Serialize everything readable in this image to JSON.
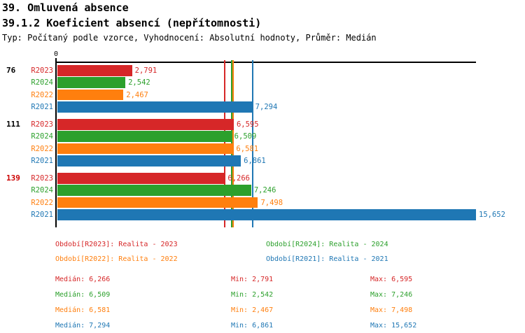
{
  "header": {
    "title": "39. Omluvená absence",
    "subtitle": "39.1.2 Koeficient absencí (nepřítomnosti)",
    "meta": "Typ: Počítaný podle vzorce, Vyhodnocení: Absolutní hodnoty, Průměr: Medián"
  },
  "colors": {
    "R2023": "#d62728",
    "R2024": "#2ca02c",
    "R2022": "#ff7f0e",
    "R2021": "#1f77b4",
    "axis": "#000000",
    "highlight_red": "#cc0000",
    "black": "#000000"
  },
  "chart_data": {
    "type": "bar",
    "orientation": "horizontal",
    "title": "39.1.2 Koeficient absencí (nepřítomnosti)",
    "xlabel": "",
    "ylabel": "",
    "axis_zero_label": "0",
    "xlim": [
      0,
      15652
    ],
    "grid": false,
    "series_order": [
      "R2023",
      "R2024",
      "R2022",
      "R2021"
    ],
    "groups": [
      {
        "label": "76",
        "label_color": "#000000",
        "bars": [
          {
            "series": "R2023",
            "value": 2791,
            "display": "2,791"
          },
          {
            "series": "R2024",
            "value": 2542,
            "display": "2,542"
          },
          {
            "series": "R2022",
            "value": 2467,
            "display": "2,467"
          },
          {
            "series": "R2021",
            "value": 7294,
            "display": "7,294"
          }
        ]
      },
      {
        "label": "111",
        "label_color": "#000000",
        "bars": [
          {
            "series": "R2023",
            "value": 6595,
            "display": "6,595"
          },
          {
            "series": "R2024",
            "value": 6509,
            "display": "6,509"
          },
          {
            "series": "R2022",
            "value": 6581,
            "display": "6,581"
          },
          {
            "series": "R2021",
            "value": 6861,
            "display": "6,861"
          }
        ]
      },
      {
        "label": "139",
        "label_color": "#cc0000",
        "bars": [
          {
            "series": "R2023",
            "value": 6266,
            "display": "6,266"
          },
          {
            "series": "R2024",
            "value": 7246,
            "display": "7,246"
          },
          {
            "series": "R2022",
            "value": 7498,
            "display": "7,498"
          },
          {
            "series": "R2021",
            "value": 15652,
            "display": "15,652"
          }
        ]
      }
    ],
    "median_lines": [
      {
        "series": "R2023",
        "value": 6266
      },
      {
        "series": "R2024",
        "value": 6509
      },
      {
        "series": "R2022",
        "value": 6581
      },
      {
        "series": "R2021",
        "value": 7294
      }
    ]
  },
  "legend": {
    "columns": [
      [
        {
          "series": "R2023",
          "label": "Období[R2023]: Realita - 2023"
        },
        {
          "series": "R2022",
          "label": "Období[R2022]: Realita - 2022"
        }
      ],
      [
        {
          "series": "R2024",
          "label": "Období[R2024]: Realita - 2024"
        },
        {
          "series": "R2021",
          "label": "Období[R2021]: Realita - 2021"
        }
      ]
    ]
  },
  "stats": {
    "rows": [
      {
        "series": "R2023",
        "median": "Medián: 6,266",
        "min": "Min: 2,791",
        "max": "Max: 6,595"
      },
      {
        "series": "R2024",
        "median": "Medián: 6,509",
        "min": "Min: 2,542",
        "max": "Max: 7,246"
      },
      {
        "series": "R2022",
        "median": "Medián: 6,581",
        "min": "Min: 2,467",
        "max": "Max: 7,498"
      },
      {
        "series": "R2021",
        "median": "Medián: 7,294",
        "min": "Min: 6,861",
        "max": "Max: 15,652"
      }
    ]
  }
}
